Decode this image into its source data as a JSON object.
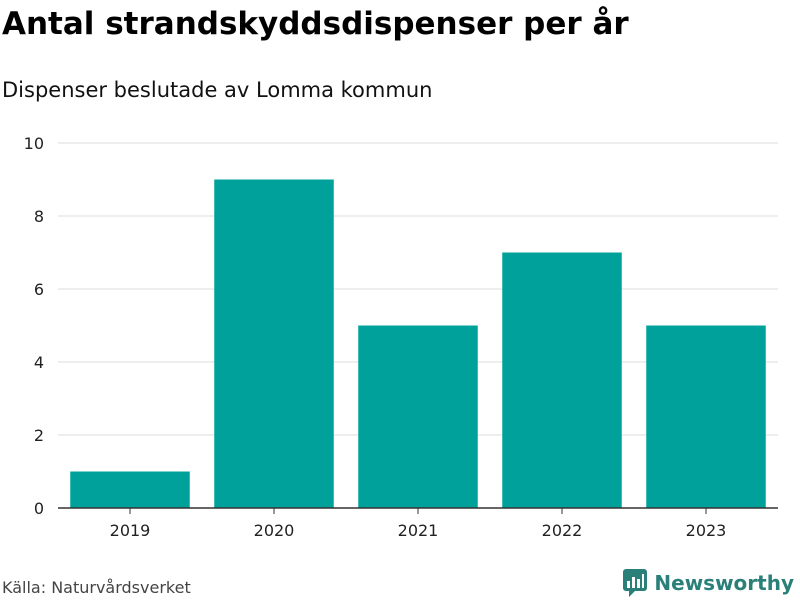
{
  "header": {
    "title": "Antal strandskyddsdispenser per år",
    "subtitle": "Dispenser beslutade av Lomma kommun"
  },
  "footer": {
    "source": "Källa: Naturvårdsverket",
    "brand": "Newsworthy",
    "brand_icon": "bar-chart-speech-bubble-icon"
  },
  "colors": {
    "bar": "#00a19a",
    "brand": "#2a7f78",
    "grid": "#dddddd",
    "axis": "#333333"
  },
  "chart_data": {
    "type": "bar",
    "title": "Antal strandskyddsdispenser per år",
    "subtitle": "Dispenser beslutade av Lomma kommun",
    "xlabel": "",
    "ylabel": "",
    "categories": [
      "2019",
      "2020",
      "2021",
      "2022",
      "2023"
    ],
    "values": [
      1,
      9,
      5,
      7,
      5
    ],
    "ylim": [
      0,
      10
    ],
    "yticks": [
      0,
      2,
      4,
      6,
      8,
      10
    ],
    "grid": true,
    "legend": "none"
  }
}
